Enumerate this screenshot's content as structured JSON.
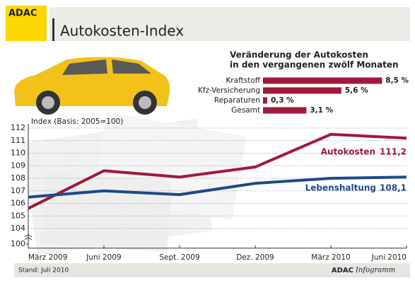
{
  "header": {
    "logo": "ADAC",
    "title": "Autokosten-Index"
  },
  "chart_data": [
    {
      "type": "bar",
      "orientation": "horizontal",
      "title_lines": [
        "Veränderung der Autokosten",
        "in den vergangenen zwölf Monaten"
      ],
      "categories": [
        "Kraftstoff",
        "Kfz-Versicherung",
        "Reparaturen",
        "Gesamt"
      ],
      "values": [
        8.5,
        5.6,
        0.3,
        3.1
      ],
      "value_labels": [
        "8,5 %",
        "5,6 %",
        "0,3 %",
        "3,1 %"
      ],
      "color": "#a3183b"
    },
    {
      "type": "line",
      "y_label": "Index (Basis: 2005=100)",
      "categories": [
        "März 2009",
        "Juni 2009",
        "Sept. 2009",
        "Dez. 2009",
        "März 2010",
        "Juni 2010"
      ],
      "series": [
        {
          "name": "Autokosten",
          "color": "#a3183b",
          "values": [
            105.6,
            108.6,
            108.1,
            108.9,
            111.5,
            111.2
          ],
          "end_value_label": "111,2"
        },
        {
          "name": "Lebenshaltung",
          "color": "#1c4a8a",
          "values": [
            106.5,
            107.0,
            106.7,
            107.6,
            108.0,
            108.1
          ],
          "end_value_label": "108,1"
        }
      ],
      "ylim": [
        103,
        112
      ],
      "yticks": [
        104,
        105,
        106,
        107,
        108,
        109,
        110,
        111,
        112
      ],
      "y_axis_base": 100,
      "grid": true
    }
  ],
  "footer": {
    "stand": "Stand: Juli 2010",
    "brand": "ADAC",
    "brand_suffix": "Infogramm"
  }
}
